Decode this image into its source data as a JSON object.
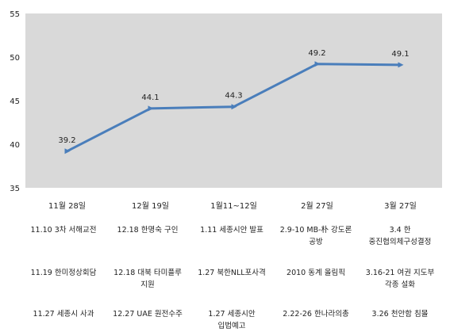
{
  "chart_data": {
    "type": "line",
    "title": "",
    "xlabel": "",
    "ylabel": "",
    "categories": [
      "11월 28일",
      "12월 19일",
      "1월11~12일",
      "2월 27일",
      "3월 27일"
    ],
    "series": [
      {
        "values": [
          39.2,
          44.1,
          44.3,
          49.2,
          49.1
        ]
      }
    ],
    "ylim": [
      35,
      55
    ],
    "yticks": [
      35,
      40,
      45,
      50,
      55
    ],
    "grid": false,
    "legend": "none",
    "colors": {
      "line": "#4a7ebb",
      "plot_background": "#d9d9d9"
    }
  },
  "events": [
    [
      "11.10 3차 서해교전",
      "12.18 한명숙 구인",
      "1.11 세종시안 발표",
      "2.9-10 MB-朴 강도론 공방",
      "3.4 한 중진협의체구성결정"
    ],
    [
      "11.19 한미정상회담",
      "12.18 대북 타미플루 지원",
      "1.27 북한NLL포사격",
      "2010 동계 올림픽",
      "3.16-21 여권 지도부 각종 설화"
    ],
    [
      "11.27 세종시 사과",
      "12.27 UAE 원전수주",
      "1.27 세종시안 입법예고",
      "2.22-26 한나라의총",
      "3.26 천안함 침몰"
    ]
  ]
}
